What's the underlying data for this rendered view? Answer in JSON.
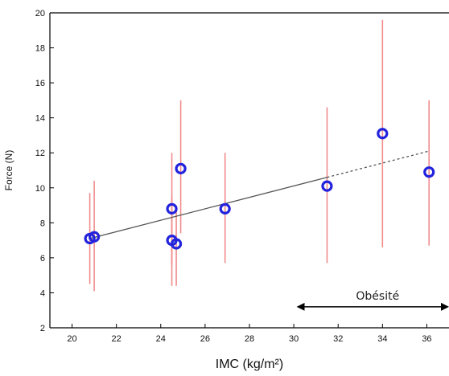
{
  "chart_data": {
    "type": "scatter",
    "title": "",
    "xlabel": "IMC (kg/m²)",
    "ylabel": "Force (N)",
    "xlim": [
      19,
      37
    ],
    "ylim": [
      2,
      20
    ],
    "x_ticks": [
      20,
      22,
      24,
      26,
      28,
      30,
      32,
      34,
      36
    ],
    "y_ticks": [
      2,
      4,
      6,
      8,
      10,
      12,
      14,
      16,
      18,
      20
    ],
    "grid": false,
    "points": [
      {
        "x": 20.8,
        "y": 7.1,
        "ylow": 4.5,
        "yhigh": 9.7
      },
      {
        "x": 21.0,
        "y": 7.2,
        "ylow": 4.1,
        "yhigh": 10.4
      },
      {
        "x": 24.5,
        "y": 8.8,
        "ylow": 5.6,
        "yhigh": 12.0
      },
      {
        "x": 24.5,
        "y": 7.0,
        "ylow": 4.4,
        "yhigh": 9.5
      },
      {
        "x": 24.7,
        "y": 6.8,
        "ylow": 4.4,
        "yhigh": 9.0
      },
      {
        "x": 24.9,
        "y": 11.1,
        "ylow": 7.4,
        "yhigh": 15.0
      },
      {
        "x": 26.9,
        "y": 8.8,
        "ylow": 5.7,
        "yhigh": 12.0
      },
      {
        "x": 31.5,
        "y": 10.1,
        "ylow": 5.7,
        "yhigh": 14.6
      },
      {
        "x": 34.0,
        "y": 13.1,
        "ylow": 6.6,
        "yhigh": 19.6
      },
      {
        "x": 36.1,
        "y": 10.9,
        "ylow": 6.7,
        "yhigh": 15.0
      }
    ],
    "trend_solid": {
      "x": [
        20.8,
        31.5
      ],
      "y": [
        7.1,
        10.6
      ]
    },
    "trend_dashed": {
      "x": [
        31.5,
        36.1
      ],
      "y": [
        10.6,
        12.1
      ]
    },
    "annotation": {
      "text": "Obésité",
      "x_start": 30.2,
      "x_end": 37,
      "y": 3.2
    },
    "colors": {
      "marker": "#2323dd",
      "error_bar": "#f08c8c",
      "trend": "#555555",
      "axis": "#000000"
    }
  }
}
